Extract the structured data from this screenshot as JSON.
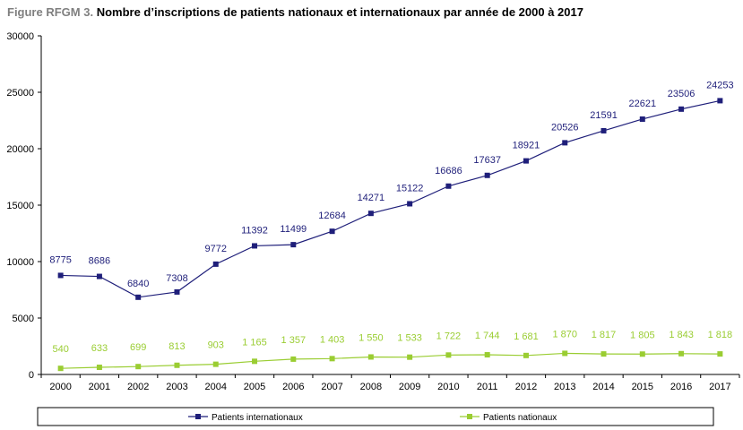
{
  "title": {
    "prefix": "Figure RFGM 3.",
    "text": "Nombre d’inscriptions de patients nationaux et internationaux par année de 2000 à 2017"
  },
  "chart_data": {
    "type": "line",
    "categories": [
      "2000",
      "2001",
      "2002",
      "2003",
      "2004",
      "2005",
      "2006",
      "2007",
      "2008",
      "2009",
      "2010",
      "2011",
      "2012",
      "2013",
      "2014",
      "2015",
      "2016",
      "2017"
    ],
    "ylim": [
      0,
      30000
    ],
    "yticks": [
      "0",
      "5000",
      "10000",
      "15000",
      "20000",
      "25000",
      "30000"
    ],
    "grid": false,
    "legend_position": "bottom",
    "series": [
      {
        "name": "Patients internationaux",
        "color": "#1f1f7a",
        "values": [
          8775,
          8686,
          6840,
          7308,
          9772,
          11392,
          11499,
          12684,
          14271,
          15122,
          16686,
          17637,
          18921,
          20526,
          21591,
          22621,
          23506,
          24253
        ],
        "labels": [
          "8775",
          "8686",
          "6840",
          "7308",
          "9772",
          "11392",
          "11499",
          "12684",
          "14271",
          "15122",
          "16686",
          "17637",
          "18921",
          "20526",
          "21591",
          "22621",
          "23506",
          "24253"
        ]
      },
      {
        "name": "Patients nationaux",
        "color": "#9acd32",
        "values": [
          540,
          633,
          699,
          813,
          903,
          1165,
          1357,
          1403,
          1550,
          1533,
          1722,
          1744,
          1681,
          1870,
          1817,
          1805,
          1843,
          1818
        ],
        "labels": [
          "540",
          "633",
          "699",
          "813",
          "903",
          "1 165",
          "1 357",
          "1 403",
          "1 550",
          "1 533",
          "1 722",
          "1 744",
          "1 681",
          "1 870",
          "1 817",
          "1 805",
          "1 843",
          "1 818"
        ]
      }
    ]
  }
}
